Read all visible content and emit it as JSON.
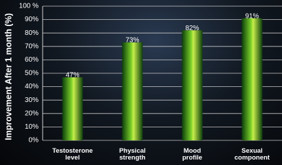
{
  "chart_data": {
    "type": "bar",
    "y_label": "Improvement After 1 month (%)",
    "categories": [
      "Testosterone level",
      "Physical strength",
      "Mood profile",
      "Sexual component"
    ],
    "values": [
      47,
      73,
      82,
      91
    ],
    "value_labels": [
      "47%",
      "73%",
      "82%",
      "91%"
    ],
    "color": "#7cd12a",
    "ylim": [
      0,
      100
    ],
    "yticks": [
      {
        "value": 0,
        "label": "0%"
      },
      {
        "value": 10,
        "label": "10%"
      },
      {
        "value": 20,
        "label": "20%"
      },
      {
        "value": 30,
        "label": "30%"
      },
      {
        "value": 40,
        "label": "40%"
      },
      {
        "value": 50,
        "label": "50%"
      },
      {
        "value": 60,
        "label": "60%"
      },
      {
        "value": 70,
        "label": "70%"
      },
      {
        "value": 80,
        "label": "80%"
      },
      {
        "value": 90,
        "label": "90%"
      },
      {
        "value": 100,
        "label": "100 %"
      }
    ],
    "grid": true
  }
}
